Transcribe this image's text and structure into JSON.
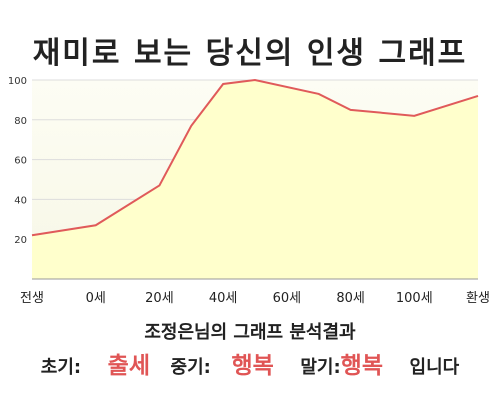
{
  "title": "재미로 보는 당신의 인생 그래프",
  "chart_data": {
    "type": "area",
    "x_ticks": [
      "전생",
      "0세",
      "20세",
      "40세",
      "60세",
      "80세",
      "100세",
      "환생"
    ],
    "y_ticks": [
      20,
      40,
      60,
      80,
      100
    ],
    "ylim": [
      0,
      100
    ],
    "points": [
      {
        "x": "전생",
        "y": 22
      },
      {
        "x": "0세",
        "y": 27
      },
      {
        "x": "20세",
        "y": 47
      },
      {
        "x": "30세",
        "y": 77
      },
      {
        "x": "40세",
        "y": 98
      },
      {
        "x": "50세",
        "y": 100
      },
      {
        "x": "70세",
        "y": 93
      },
      {
        "x": "80세",
        "y": 85
      },
      {
        "x": "100세",
        "y": 82
      },
      {
        "x": "환생",
        "y": 92
      }
    ],
    "line_color": "#e05a5a",
    "fill_color": "#ffffcc",
    "grid": true
  },
  "subtitle": "조정은님의 그래프 분석결과",
  "result": {
    "early_label": "초기:",
    "early_value": "출세",
    "mid_label": "중기:",
    "mid_value": "행복",
    "late_label": "말기:",
    "late_value": "행복",
    "ending": "입니다"
  }
}
